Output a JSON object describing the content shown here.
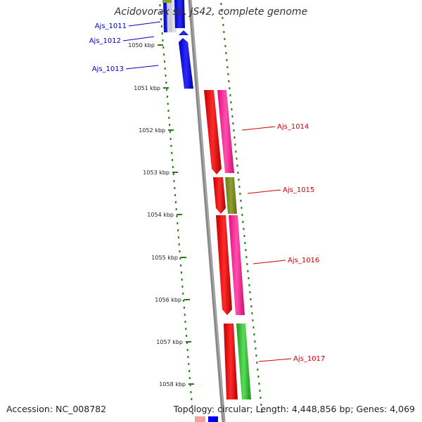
{
  "title": "Acidovorax sp. JS42, complete genome",
  "footer": {
    "accession": "Accession: NC_008782",
    "summary": "Topology: circular; Length: 4,448,856 bp; Genes: 4,069"
  },
  "ruler_ticks": [
    {
      "label": "1050 kbp",
      "kbp": 1050
    },
    {
      "label": "1051 kbp",
      "kbp": 1051
    },
    {
      "label": "1052 kbp",
      "kbp": 1052
    },
    {
      "label": "1053 kbp",
      "kbp": 1053
    },
    {
      "label": "1054 kbp",
      "kbp": 1054
    },
    {
      "label": "1055 kbp",
      "kbp": 1055
    },
    {
      "label": "1056 kbp",
      "kbp": 1056
    },
    {
      "label": "1057 kbp",
      "kbp": 1057
    },
    {
      "label": "1058 kbp",
      "kbp": 1058
    }
  ],
  "genes": [
    {
      "name": "Ajs_1011",
      "strand": "reverse",
      "color": "#0000cc"
    },
    {
      "name": "Ajs_1012",
      "strand": "reverse",
      "color": "#0000cc"
    },
    {
      "name": "Ajs_1013",
      "strand": "reverse",
      "color": "#0000cc"
    },
    {
      "name": "Ajs_1014",
      "strand": "forward",
      "color": "#cc0000"
    },
    {
      "name": "Ajs_1015",
      "strand": "forward",
      "color": "#cc0000"
    },
    {
      "name": "Ajs_1016",
      "strand": "forward",
      "color": "#cc0000"
    },
    {
      "name": "Ajs_1017",
      "strand": "forward",
      "color": "#cc0000"
    }
  ],
  "colors": {
    "reverse_cds": "#0000ff",
    "forward_cds": "#ff0000",
    "backbone": "#888888",
    "tick": "#2a7a1a",
    "cog_pink": "#ff1493",
    "cog_olive": "#7a8a20",
    "cog_green": "#2ab82a",
    "reverse_label": "#0000cc",
    "forward_label": "#cc0000"
  }
}
